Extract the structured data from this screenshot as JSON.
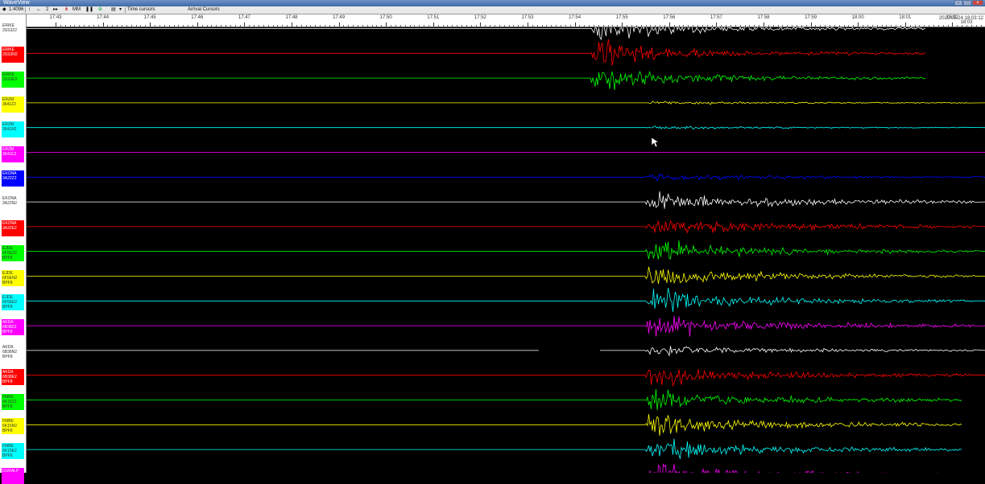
{
  "window": {
    "title": "WaveView"
  },
  "toolbar": {
    "zoom": "1:4096",
    "item_two": "2",
    "mm": "MM",
    "cursor_mode": "Time cursors",
    "arrival_mode": "Arrival Cursors"
  },
  "time_axis": {
    "labels": [
      "17:43",
      "17:44",
      "17:45",
      "17:46",
      "17:47",
      "17:48",
      "17:49",
      "17:50",
      "17:51",
      "17:52",
      "17:53",
      "17:54",
      "17:55",
      "17:56",
      "17:57",
      "17:58",
      "17:59",
      "18:00",
      "18:01",
      "18:02"
    ],
    "range_text": "2020.05.24 18:03:12",
    "last_label": "18:03"
  },
  "channels": [
    {
      "name": "ERIKE",
      "code": "3SS3Z2",
      "color": "#ffffff",
      "filter": ""
    },
    {
      "name": "ERIKE",
      "code": "3SS3N2",
      "color": "#ff0000",
      "filter": ""
    },
    {
      "name": "ERIKE",
      "code": "3SS3E2",
      "color": "#00ff00",
      "filter": ""
    },
    {
      "name": "ERZM",
      "code": "3641Z2",
      "color": "#ffff00",
      "filter": ""
    },
    {
      "name": "ERZM",
      "code": "3641N2",
      "color": "#00ffff",
      "filter": ""
    },
    {
      "name": "ERZM",
      "code": "3641E2",
      "color": "#ff00ff",
      "filter": ""
    },
    {
      "name": "EKONA",
      "code": "3A22Z2",
      "color": "#0000ff",
      "filter": ""
    },
    {
      "name": "EKONA",
      "code": "3A22N2",
      "color": "#ffffff",
      "filter": ""
    },
    {
      "name": "EKONA",
      "code": "3A22E2",
      "color": "#ff0000",
      "filter": ""
    },
    {
      "name": "EJDE",
      "code": "6F5EZ2",
      "color": "#00ff00",
      "filter": "BPF8"
    },
    {
      "name": "EJDE",
      "code": "6F5EN2",
      "color": "#ffff00",
      "filter": "BPF8"
    },
    {
      "name": "EJDE",
      "code": "6F5EE2",
      "color": "#00ffff",
      "filter": "BPF8"
    },
    {
      "name": "AKDA",
      "code": "6B38Z2",
      "color": "#ff00ff",
      "filter": "BPF8"
    },
    {
      "name": "AKDA",
      "code": "6B38N2",
      "color": "#ffffff",
      "filter": "BPF8"
    },
    {
      "name": "AKDA",
      "code": "6B38E2",
      "color": "#ff0000",
      "filter": "BPF8"
    },
    {
      "name": "FMBE",
      "code": "6K15Z2",
      "color": "#00ff00",
      "filter": "BPF8"
    },
    {
      "name": "FMBE",
      "code": "6K15N2",
      "color": "#ffff00",
      "filter": "BPF8"
    },
    {
      "name": "FMBE",
      "code": "6K15E2",
      "color": "#00ffff",
      "filter": "BPF8"
    },
    {
      "name": "DURALP",
      "code": "",
      "color": "#ff00ff",
      "filter": ""
    }
  ]
}
